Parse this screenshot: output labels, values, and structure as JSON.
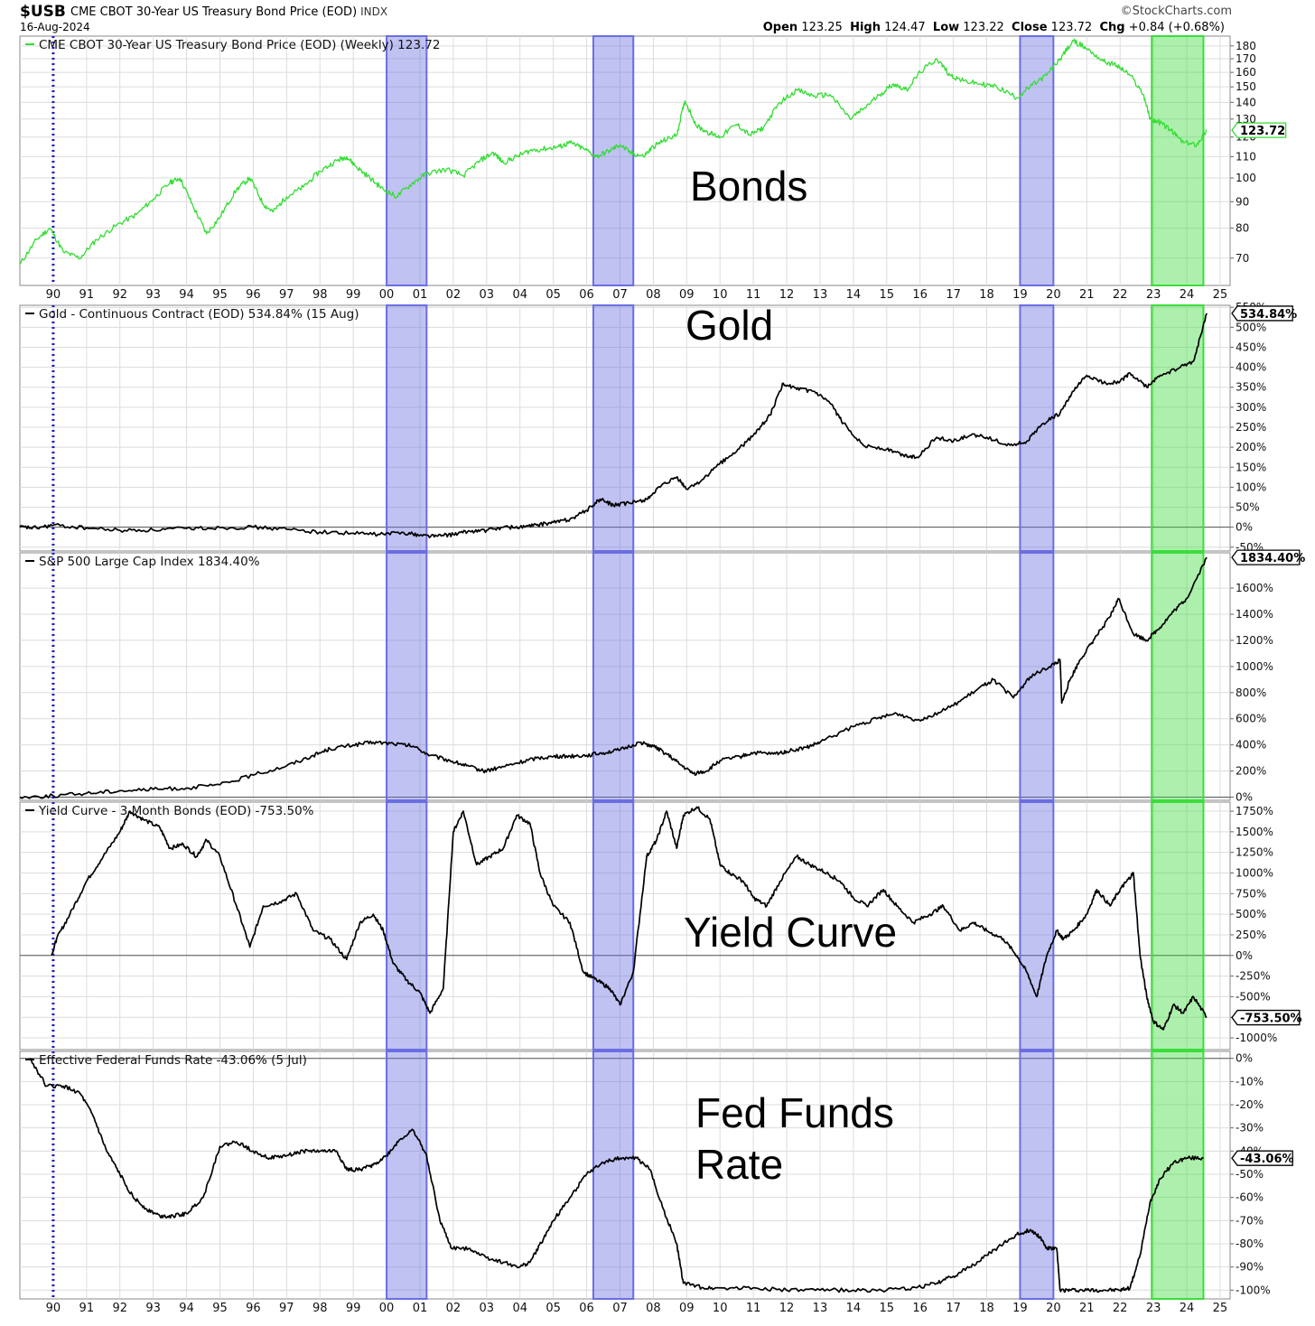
{
  "header": {
    "symbol": "$USB",
    "title": "CME CBOT 30-Year US Treasury Bond Price (EOD)",
    "exchange": "INDX",
    "date": "16-Aug-2024",
    "brand": "©StockCharts.com",
    "ohlc": {
      "open_label": "Open",
      "open": "123.25",
      "high_label": "High",
      "high": "124.47",
      "low_label": "Low",
      "low": "123.22",
      "close_label": "Close",
      "close": "123.72",
      "chg_label": "Chg",
      "chg": "+0.84 (+0.68%)"
    }
  },
  "chart_data": [
    {
      "type": "line",
      "id": "bonds",
      "legend": "CME CBOT 30-Year US Treasury Bond Price (EOD) (Weekly) 123.72",
      "annotation": "Bonds",
      "last_value_label": "123.72",
      "color": "#32dd32",
      "y_scale": "log",
      "ylim": [
        63,
        188
      ],
      "yticks": [
        70,
        80,
        90,
        100,
        110,
        120,
        130,
        140,
        150,
        160,
        170,
        180
      ],
      "series": [
        {
          "x": [
            1989.0,
            1989.5,
            1989.9,
            1990.3,
            1990.8,
            1991.3,
            1991.9,
            1992.5,
            1993.0,
            1993.5,
            1993.8,
            1994.2,
            1994.6,
            1995.0,
            1995.5,
            1995.9,
            1996.3,
            1996.6,
            1997.0,
            1997.5,
            1998.0,
            1998.5,
            1998.8,
            1999.1,
            1999.5,
            1999.9,
            2000.3,
            2000.8,
            2001.2,
            2001.8,
            2002.3,
            2002.8,
            2003.2,
            2003.5,
            2003.9,
            2004.3,
            2004.8,
            2005.2,
            2005.5,
            2005.9,
            2006.3,
            2006.7,
            2007.0,
            2007.3,
            2007.7,
            2008.0,
            2008.3,
            2008.7,
            2008.95,
            2009.3,
            2009.7,
            2010.0,
            2010.5,
            2010.9,
            2011.3,
            2011.8,
            2012.3,
            2012.8,
            2013.3,
            2013.9,
            2014.3,
            2014.8,
            2015.2,
            2015.6,
            2016.0,
            2016.5,
            2016.9,
            2017.3,
            2017.8,
            2018.3,
            2018.9,
            2019.3,
            2019.8,
            2020.2,
            2020.6,
            2021.0,
            2021.5,
            2021.9,
            2022.3,
            2022.7,
            2022.9,
            2023.2,
            2023.5,
            2023.9,
            2024.3,
            2024.6
          ],
          "values": [
            68,
            76,
            80,
            72,
            70,
            76,
            81,
            85,
            91,
            98,
            100,
            88,
            78,
            84,
            95,
            100,
            89,
            86,
            92,
            96,
            103,
            108,
            110,
            105,
            100,
            95,
            92,
            98,
            102,
            104,
            101,
            108,
            112,
            107,
            110,
            113,
            114,
            115,
            117,
            114,
            110,
            113,
            116,
            112,
            110,
            115,
            118,
            121,
            141,
            126,
            122,
            120,
            127,
            121,
            125,
            140,
            148,
            144,
            145,
            130,
            136,
            145,
            152,
            148,
            160,
            170,
            158,
            154,
            152,
            150,
            143,
            150,
            158,
            170,
            184,
            178,
            168,
            165,
            158,
            145,
            130,
            128,
            124,
            117,
            116,
            123.72
          ]
        }
      ]
    },
    {
      "type": "line",
      "id": "gold",
      "legend": "Gold - Continuous Contract (EOD) 534.84% (15 Aug)",
      "annotation": "Gold",
      "last_value_label": "534.84%",
      "color": "#000000",
      "ylim": [
        -55,
        555
      ],
      "yticks": [
        "-50%",
        "0%",
        "50%",
        "100%",
        "150%",
        "200%",
        "250%",
        "300%",
        "350%",
        "400%",
        "450%",
        "500%",
        "550%"
      ],
      "ytick_values": [
        -50,
        0,
        50,
        100,
        150,
        200,
        250,
        300,
        350,
        400,
        450,
        500,
        550
      ],
      "series": [
        {
          "x": [
            1989.0,
            1989.5,
            1990.0,
            1991.0,
            1992.0,
            1993.0,
            1994.0,
            1995.0,
            1996.0,
            1997.0,
            1998.0,
            1999.0,
            1999.8,
            2000.5,
            2001.0,
            2001.5,
            2002.0,
            2002.5,
            2003.0,
            2003.5,
            2004.0,
            2004.5,
            2005.0,
            2005.5,
            2006.0,
            2006.4,
            2006.8,
            2007.3,
            2007.8,
            2008.2,
            2008.7,
            2009.0,
            2009.5,
            2010.0,
            2010.5,
            2011.0,
            2011.5,
            2011.9,
            2012.3,
            2012.8,
            2013.3,
            2013.7,
            2014.3,
            2015.0,
            2015.5,
            2015.9,
            2016.5,
            2017.0,
            2017.5,
            2018.0,
            2018.7,
            2019.2,
            2019.7,
            2020.2,
            2020.6,
            2021.0,
            2021.5,
            2022.0,
            2022.3,
            2022.8,
            2023.2,
            2023.7,
            2024.2,
            2024.6
          ],
          "values": [
            0,
            -2,
            5,
            -2,
            -8,
            -7,
            -3,
            -1,
            0,
            -5,
            -12,
            -15,
            -18,
            -13,
            -20,
            -22,
            -18,
            -10,
            -8,
            0,
            0,
            5,
            12,
            20,
            42,
            70,
            55,
            60,
            70,
            100,
            125,
            95,
            120,
            160,
            190,
            230,
            280,
            360,
            345,
            340,
            310,
            260,
            205,
            195,
            180,
            175,
            225,
            215,
            230,
            225,
            205,
            215,
            260,
            285,
            340,
            380,
            360,
            365,
            385,
            350,
            380,
            395,
            415,
            534.84
          ]
        }
      ]
    },
    {
      "type": "line",
      "id": "sp500",
      "legend": "S&P 500 Large Cap Index 1834.40%",
      "annotation": "",
      "last_value_label": "1834.40%",
      "color": "#000000",
      "ylim": [
        -10,
        1870
      ],
      "yticks": [
        "0%",
        "200%",
        "400%",
        "600%",
        "800%",
        "1000%",
        "1200%",
        "1400%",
        "1600%"
      ],
      "ytick_values": [
        0,
        200,
        400,
        600,
        800,
        1000,
        1200,
        1400,
        1600
      ],
      "series": [
        {
          "x": [
            1989.0,
            1990.0,
            1991.0,
            1992.0,
            1993.0,
            1994.0,
            1995.0,
            1996.0,
            1997.0,
            1997.8,
            1998.3,
            1999.0,
            1999.6,
            2000.2,
            2000.8,
            2001.3,
            2001.9,
            2002.4,
            2002.9,
            2003.3,
            2003.9,
            2004.5,
            2005.0,
            2005.5,
            2006.0,
            2006.5,
            2007.0,
            2007.6,
            2008.0,
            2008.4,
            2008.8,
            2009.2,
            2009.6,
            2010.0,
            2010.6,
            2011.0,
            2011.6,
            2012.0,
            2012.6,
            2013.0,
            2014.0,
            2014.7,
            2015.3,
            2015.9,
            2016.3,
            2017.0,
            2017.7,
            2018.2,
            2018.8,
            2019.3,
            2019.9,
            2020.2,
            2020.25,
            2020.5,
            2020.8,
            2021.2,
            2021.7,
            2021.95,
            2022.4,
            2022.8,
            2023.2,
            2023.6,
            2024.0,
            2024.6
          ],
          "values": [
            0,
            10,
            30,
            50,
            60,
            70,
            95,
            170,
            240,
            320,
            370,
            400,
            420,
            410,
            390,
            320,
            280,
            240,
            200,
            220,
            260,
            300,
            310,
            315,
            320,
            340,
            360,
            420,
            390,
            330,
            250,
            180,
            200,
            280,
            310,
            340,
            330,
            350,
            380,
            420,
            540,
            600,
            640,
            590,
            620,
            700,
            820,
            900,
            760,
            920,
            1000,
            1050,
            720,
            900,
            1050,
            1200,
            1380,
            1520,
            1250,
            1200,
            1300,
            1420,
            1520,
            1834.4
          ]
        }
      ]
    },
    {
      "type": "line",
      "id": "yield_curve",
      "legend": "Yield Curve - 3 Month Bonds (EOD) -753.50%",
      "annotation": "Yield Curve",
      "last_value_label": "-753.50%",
      "color": "#000000",
      "ylim": [
        -1120,
        1860
      ],
      "yticks": [
        "-1000%",
        "-750%",
        "-500%",
        "-250%",
        "0%",
        "250%",
        "500%",
        "750%",
        "1000%",
        "1250%",
        "1500%",
        "1750%"
      ],
      "ytick_values": [
        -1000,
        -750,
        -500,
        -250,
        0,
        250,
        500,
        750,
        1000,
        1250,
        1500,
        1750
      ],
      "series": [
        {
          "x": [
            1989.95,
            1990.1,
            1990.5,
            1991.0,
            1991.5,
            1992.0,
            1992.3,
            1992.7,
            1993.2,
            1993.5,
            1993.9,
            1994.3,
            1994.6,
            1995.0,
            1995.5,
            1995.9,
            1996.3,
            1996.8,
            1997.3,
            1997.8,
            1998.3,
            1998.8,
            1999.2,
            1999.6,
            1999.9,
            2000.2,
            2000.6,
            2001.0,
            2001.3,
            2001.7,
            2002.0,
            2002.3,
            2002.7,
            2003.1,
            2003.5,
            2003.9,
            2004.3,
            2004.6,
            2005.0,
            2005.5,
            2005.9,
            2006.3,
            2006.7,
            2007.0,
            2007.4,
            2007.8,
            2008.1,
            2008.4,
            2008.7,
            2008.9,
            2009.3,
            2009.7,
            2010.0,
            2010.3,
            2010.7,
            2011.0,
            2011.4,
            2011.8,
            2012.3,
            2012.7,
            2013.2,
            2013.6,
            2014.0,
            2014.4,
            2014.9,
            2015.3,
            2015.8,
            2016.3,
            2016.7,
            2017.2,
            2017.6,
            2018.0,
            2018.5,
            2018.9,
            2019.2,
            2019.5,
            2019.8,
            2020.1,
            2020.3,
            2020.6,
            2021.0,
            2021.3,
            2021.7,
            2022.0,
            2022.2,
            2022.4,
            2022.6,
            2022.8,
            2023.0,
            2023.3,
            2023.6,
            2023.9,
            2024.2,
            2024.6
          ],
          "values": [
            0,
            200,
            500,
            900,
            1200,
            1500,
            1750,
            1650,
            1550,
            1300,
            1350,
            1200,
            1400,
            1200,
            600,
            100,
            600,
            650,
            750,
            300,
            200,
            -50,
            400,
            500,
            300,
            -100,
            -300,
            -450,
            -700,
            -400,
            1500,
            1750,
            1100,
            1200,
            1300,
            1700,
            1600,
            1000,
            600,
            400,
            -200,
            -300,
            -400,
            -600,
            -200,
            1200,
            1400,
            1750,
            1300,
            1700,
            1800,
            1650,
            1100,
            1000,
            900,
            700,
            600,
            900,
            1200,
            1100,
            1000,
            900,
            700,
            600,
            800,
            600,
            400,
            500,
            600,
            300,
            400,
            300,
            200,
            0,
            -200,
            -500,
            0,
            300,
            200,
            300,
            500,
            800,
            600,
            800,
            900,
            1000,
            0,
            -500,
            -800,
            -900,
            -600,
            -700,
            -500,
            -753.5
          ]
        }
      ]
    },
    {
      "type": "line",
      "id": "fed_funds",
      "legend": "Effective Federal Funds Rate -43.06% (5 Jul)",
      "annotation": "Fed Funds Rate",
      "annotation_lines": [
        "Fed Funds",
        "Rate"
      ],
      "last_value_label": "-43.06%",
      "color": "#000000",
      "ylim": [
        -103,
        3
      ],
      "yticks": [
        "-100%",
        "-90%",
        "-80%",
        "-70%",
        "-60%",
        "-50%",
        "-40%",
        "-30%",
        "-20%",
        "-10%",
        "0%"
      ],
      "ytick_values": [
        -100,
        -90,
        -80,
        -70,
        -60,
        -50,
        -40,
        -30,
        -20,
        -10,
        0
      ],
      "series": [
        {
          "x": [
            1989.3,
            1989.8,
            1990.3,
            1990.8,
            1991.2,
            1991.6,
            1992.0,
            1992.4,
            1992.8,
            1993.2,
            1993.6,
            1994.0,
            1994.5,
            1995.0,
            1995.5,
            1996.0,
            1996.5,
            1997.0,
            1997.5,
            1998.0,
            1998.5,
            1998.8,
            1999.2,
            1999.6,
            2000.0,
            2000.4,
            2000.8,
            2001.2,
            2001.6,
            2001.95,
            2002.5,
            2003.0,
            2003.5,
            2004.0,
            2004.3,
            2004.7,
            2005.0,
            2005.5,
            2006.0,
            2006.5,
            2007.0,
            2007.5,
            2007.9,
            2008.3,
            2008.7,
            2008.9,
            2009.5,
            2010.0,
            2011.0,
            2012.0,
            2013.0,
            2014.0,
            2015.0,
            2015.9,
            2016.5,
            2017.0,
            2017.5,
            2018.0,
            2018.5,
            2018.9,
            2019.3,
            2019.6,
            2019.8,
            2020.1,
            2020.2,
            2020.5,
            2021.0,
            2021.5,
            2022.0,
            2022.3,
            2022.6,
            2022.9,
            2023.2,
            2023.6,
            2024.0,
            2024.5
          ],
          "values": [
            0,
            -12,
            -12,
            -15,
            -25,
            -40,
            -50,
            -60,
            -65,
            -68,
            -68,
            -67,
            -60,
            -38,
            -36,
            -40,
            -43,
            -42,
            -40,
            -40,
            -40,
            -48,
            -48,
            -46,
            -42,
            -35,
            -31,
            -42,
            -70,
            -82,
            -82,
            -86,
            -88,
            -90,
            -88,
            -78,
            -70,
            -60,
            -50,
            -45,
            -43,
            -43,
            -48,
            -65,
            -80,
            -97,
            -99,
            -99,
            -99,
            -100,
            -100,
            -100,
            -100,
            -99,
            -97,
            -94,
            -90,
            -85,
            -80,
            -76,
            -74,
            -77,
            -82,
            -82,
            -100,
            -100,
            -100,
            -100,
            -100,
            -99,
            -85,
            -62,
            -52,
            -45,
            -43,
            -43.06
          ]
        }
      ]
    }
  ],
  "x_axis": {
    "tick_labels": [
      "90",
      "91",
      "92",
      "93",
      "94",
      "95",
      "96",
      "97",
      "98",
      "99",
      "00",
      "01",
      "02",
      "03",
      "04",
      "05",
      "06",
      "07",
      "08",
      "09",
      "10",
      "11",
      "12",
      "13",
      "14",
      "15",
      "16",
      "17",
      "18",
      "19",
      "20",
      "21",
      "22",
      "23",
      "24",
      "25"
    ],
    "tick_years": [
      1990,
      1991,
      1992,
      1993,
      1994,
      1995,
      1996,
      1997,
      1998,
      1999,
      2000,
      2001,
      2002,
      2003,
      2004,
      2005,
      2006,
      2007,
      2008,
      2009,
      2010,
      2011,
      2012,
      2013,
      2014,
      2015,
      2016,
      2017,
      2018,
      2019,
      2020,
      2021,
      2022,
      2023,
      2024,
      2025
    ]
  },
  "highlight_bands": [
    {
      "start": 2000.0,
      "end": 2001.2,
      "color": "#6a6ee0"
    },
    {
      "start": 2006.2,
      "end": 2007.4,
      "color": "#6a6ee0"
    },
    {
      "start": 2019.0,
      "end": 2020.0,
      "color": "#6a6ee0"
    },
    {
      "start": 2022.95,
      "end": 2024.5,
      "color": "#3cdc3c"
    }
  ],
  "vertical_marker": {
    "x": 1990.0,
    "color": "#1a1acc",
    "style": "dotted"
  }
}
